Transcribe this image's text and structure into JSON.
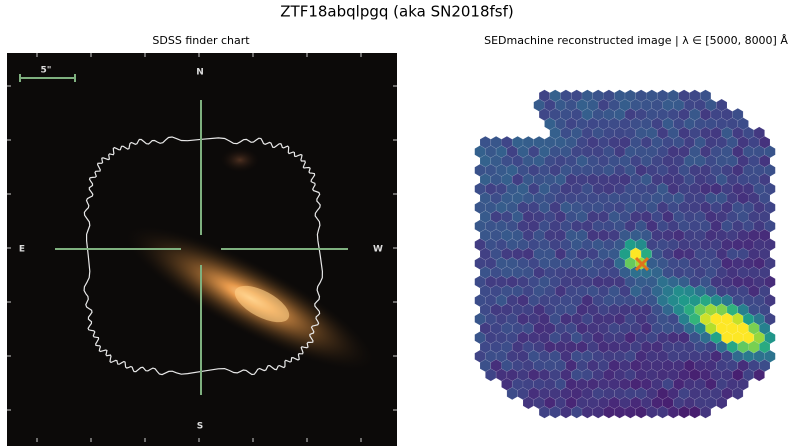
{
  "title": "ZTF18abqlpgq (aka SN2018fsf)",
  "finder": {
    "title": "SDSS finder chart",
    "scale": "5\"",
    "north": "N",
    "south": "S",
    "east": "E",
    "west": "W"
  },
  "sedm": {
    "title": "SEDmachine reconstructed image | λ ∈ [5000, 8000] Å"
  }
}
